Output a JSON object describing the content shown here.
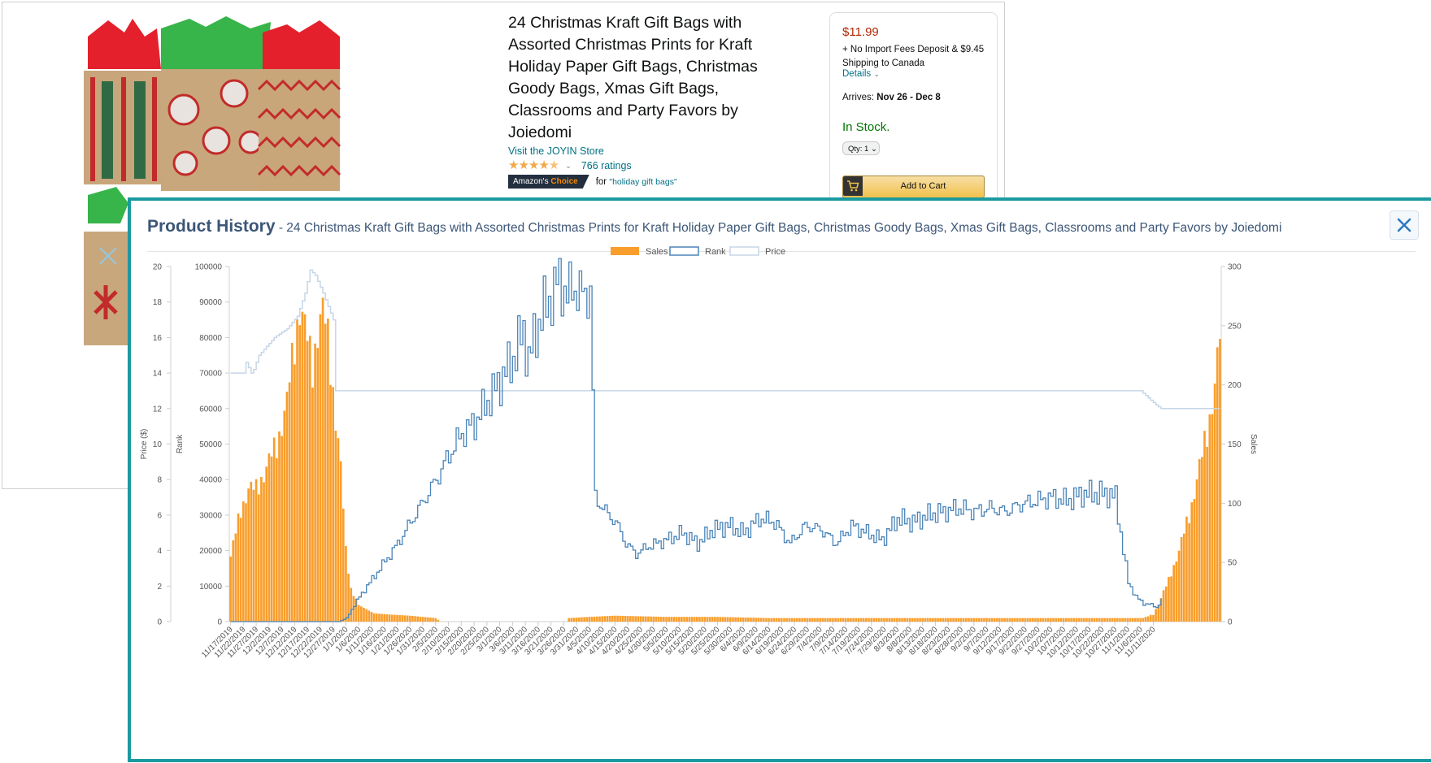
{
  "product": {
    "title": "24 Christmas Kraft Gift Bags with Assorted Christmas Prints for Kraft Holiday Paper Gift Bags, Christmas Goody Bags, Xmas Gift Bags, Classrooms and Party Favors by Joiedomi",
    "store_link": "Visit the JOYIN Store",
    "rating_stars": 4.5,
    "ratings_count": "766 ratings",
    "badge_prefix": "Amazon's",
    "badge_highlight": "Choice",
    "badge_for": "for",
    "badge_keyword": "\"holiday gift bags\""
  },
  "buy_box": {
    "price": "$11.99",
    "fees": "+ No Import Fees Deposit & $9.45 Shipping to Canada",
    "details_link": "Details",
    "arrives_label": "Arrives:",
    "arrives_dates": "Nov 26 - Dec 8",
    "stock": "In Stock.",
    "qty": "Qty: 1",
    "add_to_cart": "Add to Cart"
  },
  "modal": {
    "title": "Product History",
    "subtitle": " - 24 Christmas Kraft Gift Bags with Assorted Christmas Prints for Kraft Holiday Paper Gift Bags, Christmas Goody Bags, Xmas Gift Bags, Classrooms and Party Favors by Joiedomi",
    "close_icon": "close-icon"
  },
  "colors": {
    "sales": "#f99e2c",
    "rank": "#4a84b8",
    "price": "#c6d6e6",
    "modal_border": "#1a9aa0"
  },
  "chart_data": {
    "type": "bar+line",
    "legend": [
      "Sales",
      "Rank",
      "Price"
    ],
    "legend_position": "top-center",
    "axes": {
      "price": {
        "label": "Price ($)",
        "min": 0,
        "max": 20,
        "ticks": [
          0,
          2,
          4,
          6,
          8,
          10,
          12,
          14,
          16,
          18,
          20
        ]
      },
      "rank": {
        "label": "Rank",
        "min": 0,
        "max": 100000,
        "ticks": [
          0,
          10000,
          20000,
          30000,
          40000,
          50000,
          60000,
          70000,
          80000,
          90000,
          100000
        ]
      },
      "sales": {
        "label": "Sales",
        "min": 0,
        "max": 300,
        "ticks": [
          0,
          50,
          100,
          150,
          200,
          250,
          300
        ]
      }
    },
    "x_labels": [
      "11/17/2019",
      "11/22/2019",
      "11/27/2019",
      "12/2/2019",
      "12/7/2019",
      "12/12/2019",
      "12/17/2019",
      "12/22/2019",
      "12/27/2019",
      "1/1/2020",
      "1/6/2020",
      "1/11/2020",
      "1/16/2020",
      "1/21/2020",
      "1/26/2020",
      "1/31/2020",
      "2/5/2020",
      "2/10/2020",
      "2/15/2020",
      "2/20/2020",
      "2/25/2020",
      "3/1/2020",
      "3/6/2020",
      "3/11/2020",
      "3/16/2020",
      "3/21/2020",
      "3/26/2020",
      "3/31/2020",
      "4/5/2020",
      "4/10/2020",
      "4/15/2020",
      "4/20/2020",
      "4/25/2020",
      "4/30/2020",
      "5/5/2020",
      "5/10/2020",
      "5/15/2020",
      "5/20/2020",
      "5/25/2020",
      "5/30/2020",
      "6/4/2020",
      "6/9/2020",
      "6/14/2020",
      "6/19/2020",
      "6/24/2020",
      "6/29/2020",
      "7/4/2020",
      "7/9/2020",
      "7/14/2020",
      "7/19/2020",
      "7/24/2020",
      "7/29/2020",
      "8/3/2020",
      "8/8/2020",
      "8/13/2020",
      "8/18/2020",
      "8/23/2020",
      "8/28/2020",
      "9/2/2020",
      "9/7/2020",
      "9/12/2020",
      "9/17/2020",
      "9/22/2020",
      "9/27/2020",
      "10/2/2020",
      "10/7/2020",
      "10/12/2020",
      "10/17/2020",
      "10/22/2020",
      "10/27/2020",
      "11/1/2020",
      "11/6/2020",
      "11/11/2020"
    ],
    "sales_keypoints": [
      [
        0,
        55
      ],
      [
        2,
        75
      ],
      [
        4,
        95
      ],
      [
        7,
        112
      ],
      [
        10,
        112
      ],
      [
        14,
        130
      ],
      [
        18,
        150
      ],
      [
        22,
        185
      ],
      [
        24,
        220
      ],
      [
        27,
        268
      ],
      [
        29,
        248
      ],
      [
        32,
        215
      ],
      [
        34,
        248
      ],
      [
        36,
        262
      ],
      [
        38,
        240
      ],
      [
        40,
        195
      ],
      [
        43,
        130
      ],
      [
        45,
        60
      ],
      [
        47,
        28
      ],
      [
        50,
        14
      ],
      [
        56,
        7
      ],
      [
        62,
        6
      ],
      [
        70,
        5
      ],
      [
        80,
        3
      ],
      [
        82,
        0
      ],
      [
        131,
        0
      ],
      [
        132,
        3
      ],
      [
        140,
        4
      ],
      [
        150,
        5
      ],
      [
        170,
        4
      ],
      [
        190,
        4
      ],
      [
        210,
        3
      ],
      [
        230,
        3
      ],
      [
        260,
        3
      ],
      [
        300,
        3
      ],
      [
        330,
        3
      ],
      [
        356,
        3
      ],
      [
        360,
        6
      ],
      [
        362,
        15
      ],
      [
        366,
        35
      ],
      [
        370,
        60
      ],
      [
        374,
        90
      ],
      [
        378,
        130
      ],
      [
        381,
        160
      ],
      [
        384,
        200
      ],
      [
        386,
        240
      ]
    ],
    "rank_keypoints": [
      [
        0,
        0
      ],
      [
        42,
        0
      ],
      [
        45,
        1000
      ],
      [
        50,
        7000
      ],
      [
        55,
        12000
      ],
      [
        60,
        17000
      ],
      [
        65,
        22000
      ],
      [
        70,
        28000
      ],
      [
        75,
        34000
      ],
      [
        80,
        40000
      ],
      [
        85,
        47000
      ],
      [
        90,
        53000
      ],
      [
        95,
        56000
      ],
      [
        100,
        62000
      ],
      [
        105,
        68000
      ],
      [
        110,
        74000
      ],
      [
        114,
        82000
      ],
      [
        116,
        73000
      ],
      [
        118,
        80000
      ],
      [
        122,
        88000
      ],
      [
        126,
        93000
      ],
      [
        128,
        97000
      ],
      [
        131,
        91000
      ],
      [
        133,
        95000
      ],
      [
        136,
        92000
      ],
      [
        140,
        93000
      ],
      [
        142,
        35000
      ],
      [
        146,
        31000
      ],
      [
        150,
        28000
      ],
      [
        154,
        22000
      ],
      [
        158,
        19000
      ],
      [
        162,
        21000
      ],
      [
        166,
        22000
      ],
      [
        170,
        23000
      ],
      [
        176,
        25000
      ],
      [
        182,
        22000
      ],
      [
        188,
        26000
      ],
      [
        194,
        27000
      ],
      [
        200,
        25000
      ],
      [
        206,
        29000
      ],
      [
        212,
        28000
      ],
      [
        218,
        22000
      ],
      [
        224,
        27000
      ],
      [
        230,
        26000
      ],
      [
        236,
        22000
      ],
      [
        242,
        27000
      ],
      [
        248,
        25000
      ],
      [
        254,
        23000
      ],
      [
        260,
        29000
      ],
      [
        266,
        28000
      ],
      [
        272,
        30000
      ],
      [
        278,
        31000
      ],
      [
        284,
        32000
      ],
      [
        290,
        31000
      ],
      [
        296,
        32000
      ],
      [
        302,
        31000
      ],
      [
        308,
        33000
      ],
      [
        314,
        34000
      ],
      [
        320,
        35000
      ],
      [
        326,
        34000
      ],
      [
        332,
        36000
      ],
      [
        338,
        36000
      ],
      [
        342,
        36000
      ],
      [
        345,
        35000
      ],
      [
        348,
        20000
      ],
      [
        350,
        11000
      ],
      [
        353,
        7000
      ],
      [
        356,
        5000
      ],
      [
        358,
        5000
      ],
      [
        361,
        4000
      ],
      [
        363,
        6000
      ]
    ],
    "price_keypoints": [
      [
        0,
        14
      ],
      [
        5,
        14
      ],
      [
        6,
        14.6
      ],
      [
        8,
        14
      ],
      [
        9,
        14.2
      ],
      [
        11,
        15.0
      ],
      [
        14,
        15.5
      ],
      [
        17,
        16.0
      ],
      [
        22,
        16.5
      ],
      [
        26,
        17.2
      ],
      [
        29,
        18.5
      ],
      [
        31,
        19.8
      ],
      [
        33,
        19.5
      ],
      [
        36,
        18.5
      ],
      [
        40,
        17.0
      ],
      [
        41,
        13.0
      ],
      [
        200,
        13.0
      ],
      [
        355,
        13.0
      ],
      [
        358,
        12.6
      ],
      [
        361,
        12.2
      ],
      [
        363,
        12.0
      ],
      [
        386,
        12.0
      ]
    ]
  }
}
